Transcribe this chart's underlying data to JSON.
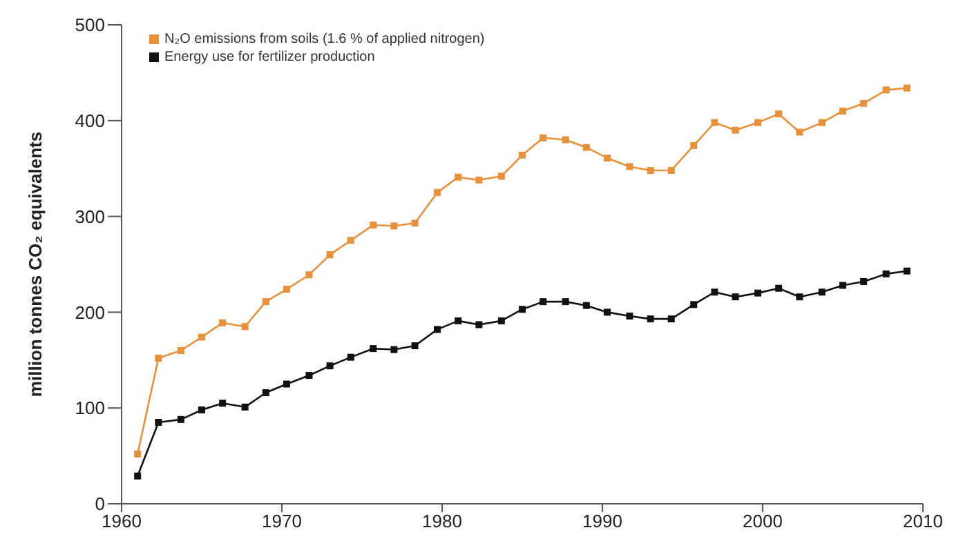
{
  "chart_data": {
    "type": "line",
    "ylabel": "million tonnes CO₂ equivalents",
    "x": [
      1961,
      1962.3,
      1963.7,
      1965,
      1966.3,
      1967.7,
      1969,
      1970.3,
      1971.7,
      1973,
      1974.3,
      1975.7,
      1977,
      1978.3,
      1979.7,
      1981,
      1982.3,
      1983.7,
      1985,
      1986.3,
      1987.7,
      1989,
      1990.3,
      1991.7,
      1993,
      1994.3,
      1995.7,
      1997,
      1998.3,
      1999.7,
      2001,
      2002.3,
      2003.7,
      2005,
      2006.3,
      2007.7,
      2009
    ],
    "series": [
      {
        "name": "N₂O emissions from soils (1.6 % of applied nitrogen)",
        "color": "#e8903a",
        "values": [
          52,
          152,
          160,
          174,
          189,
          185,
          211,
          224,
          239,
          260,
          275,
          291,
          290,
          293,
          325,
          341,
          338,
          342,
          364,
          382,
          380,
          372,
          361,
          352,
          348,
          348,
          374,
          398,
          390,
          398,
          407,
          388,
          398,
          410,
          418,
          432,
          434
        ]
      },
      {
        "name": "Energy use for fertilizer production",
        "color": "#111111",
        "values": [
          29,
          85,
          88,
          98,
          105,
          101,
          116,
          125,
          134,
          144,
          153,
          162,
          161,
          165,
          182,
          191,
          187,
          191,
          203,
          211,
          211,
          207,
          200,
          196,
          193,
          193,
          208,
          221,
          216,
          220,
          225,
          216,
          221,
          228,
          232,
          240,
          243
        ]
      }
    ],
    "xlim": [
      1960,
      2010
    ],
    "xticks": [
      1960,
      1970,
      1980,
      1990,
      2000,
      2010
    ],
    "ylim": [
      0,
      500
    ],
    "yticks": [
      0,
      100,
      200,
      300,
      400,
      500
    ],
    "grid": false,
    "legend": "top left",
    "marker": "square",
    "line_style": "solid"
  }
}
